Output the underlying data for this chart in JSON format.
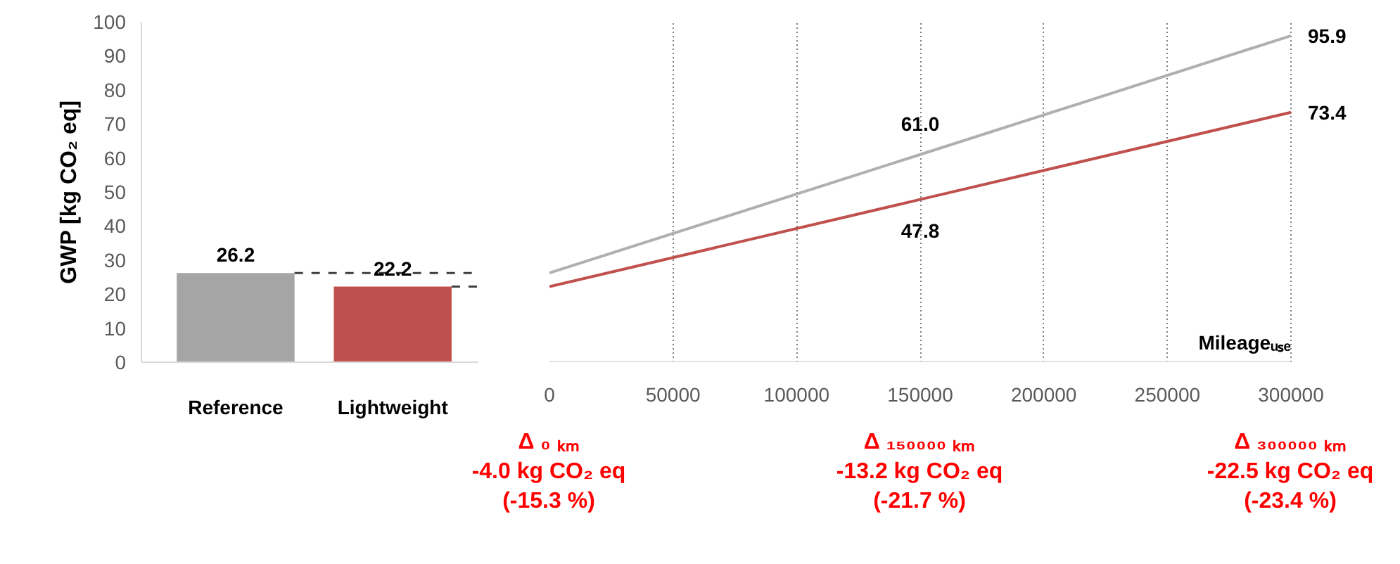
{
  "chart_data": [
    {
      "type": "bar",
      "ylabel": "GWP [kg CO₂ eq]",
      "categories": [
        "Reference",
        "Lightweight"
      ],
      "values": [
        26.2,
        22.2
      ],
      "colors": [
        "#a5a5a5",
        "#c0504d"
      ],
      "data_labels": true,
      "ylim": [
        0,
        100
      ],
      "yticks": [
        0,
        10,
        20,
        30,
        40,
        50,
        60,
        70,
        80,
        90,
        100
      ],
      "grid": false,
      "ref_lines": [
        {
          "axis": "y",
          "value": 26.2,
          "line_style": "dashed",
          "color": "#404040"
        },
        {
          "axis": "y",
          "value": 22.2,
          "line_style": "dashed",
          "color": "#404040"
        }
      ]
    },
    {
      "type": "line",
      "xlabel": "Mileageᵤₛₑ",
      "x": [
        0,
        150000,
        300000
      ],
      "xlim": [
        0,
        300000
      ],
      "xticks": [
        0,
        50000,
        100000,
        150000,
        200000,
        250000,
        300000
      ],
      "ylim": [
        0,
        100
      ],
      "tick_labels": "x",
      "grid": "x",
      "marker": "none",
      "line_style": "solid",
      "series": [
        {
          "color": "#b0b0b0",
          "values": [
            26.2,
            61.0,
            95.9
          ],
          "value_labels": [
            null,
            "61.0",
            "95.9"
          ]
        },
        {
          "color": "#c0504d",
          "values": [
            22.2,
            47.8,
            73.4
          ],
          "value_labels": [
            null,
            "47.8",
            "73.4"
          ]
        }
      ],
      "annotations": [
        "Δ ₀ ₖₘ\n-4.0 kg CO₂ eq\n(-15.3 %)",
        "Δ ₁₅₀₀₀₀ ₖₘ\n-13.2 kg CO₂ eq\n(-21.7 %)",
        "Δ ₃₀₀₀₀₀ ₖₘ\n-22.5 kg CO₂ eq\n(-23.4 %)"
      ]
    }
  ]
}
